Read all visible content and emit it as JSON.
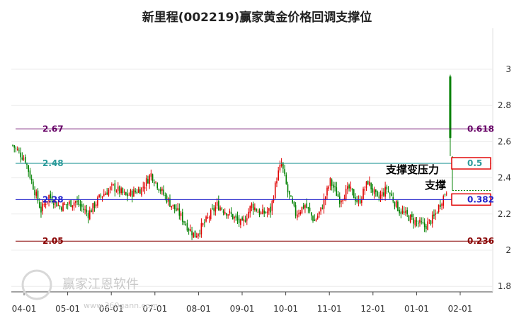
{
  "chart_data": {
    "type": "candlestick",
    "title": "新里程(002219)赢家黄金价格回调支撑位",
    "y_ticks": [
      1.8,
      2,
      2.2,
      2.4,
      2.6,
      2.8,
      3
    ],
    "y_tick_labels": [
      "1.8",
      "2",
      "2.2",
      "2.4",
      "2.6",
      "2.8",
      "3"
    ],
    "ylim": [
      1.8,
      3.0
    ],
    "x_tick_labels": [
      "04-01",
      "05-01",
      "06-01",
      "07-01",
      "08-01",
      "09-01",
      "10-01",
      "11-01",
      "12-01",
      "01-01",
      "02-01"
    ],
    "levels": [
      {
        "price": 2.67,
        "price_label": "2.67",
        "ratio": "0.618",
        "color": "#660066"
      },
      {
        "price": 2.48,
        "price_label": "2.48",
        "ratio": "0.5",
        "color": "#2a9a9a"
      },
      {
        "price": 2.28,
        "price_label": "2.28",
        "ratio": "0.382",
        "color": "#2222cc"
      },
      {
        "price": 2.05,
        "price_label": "2.05",
        "ratio": "0.236",
        "color": "#880000"
      }
    ],
    "annotations": {
      "resistance": "支撑变压力",
      "support": "支撑"
    },
    "last_close": 2.33,
    "colors": {
      "up": "#e00000",
      "down": "#008000"
    }
  },
  "watermark": {
    "text": "赢家江恩软件",
    "url": "www.360gann.com"
  }
}
